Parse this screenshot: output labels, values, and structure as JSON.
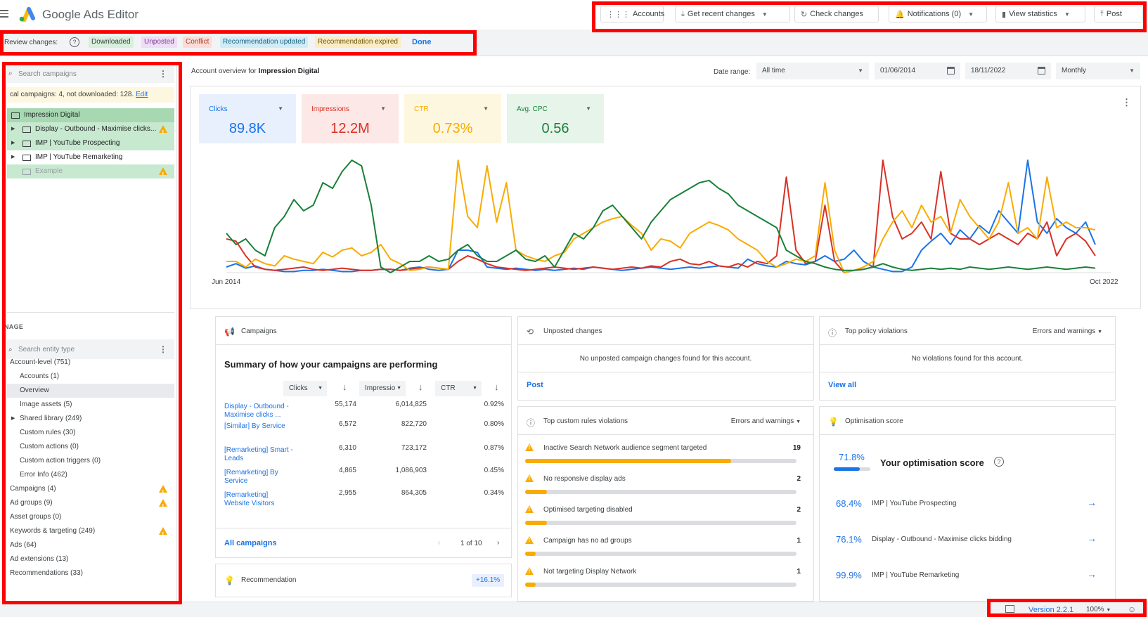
{
  "app": {
    "title": "Google Ads Editor"
  },
  "toolbar": {
    "accounts": "Accounts",
    "get_recent_changes": "Get recent changes",
    "check_changes": "Check changes",
    "notifications": "Notifications (0)",
    "view_statistics": "View statistics",
    "post": "Post"
  },
  "review": {
    "label": "Review changes:",
    "chips": [
      {
        "label": "Downloaded",
        "bg": "#d7efdb",
        "fg": "#3c4043"
      },
      {
        "label": "Unposted",
        "bg": "#efdcf5",
        "fg": "#7b3f9a"
      },
      {
        "label": "Conflict",
        "bg": "#fcdcd7",
        "fg": "#a5442f"
      },
      {
        "label": "Recommendation updated",
        "bg": "#d2ecf7",
        "fg": "#15607f"
      },
      {
        "label": "Recommendation expired",
        "bg": "#fbecc4",
        "fg": "#6b5200"
      }
    ],
    "done": "Done"
  },
  "left_panel": {
    "search_placeholder": "Search campaigns",
    "info_text": "cal campaigns: 4, not downloaded: 128.",
    "info_link": "Edit",
    "tree": [
      {
        "label": "Impression Digital",
        "state": "downloaded"
      },
      {
        "label": "Display - Outbound - Maximise clicks...",
        "state": "downloaded"
      },
      {
        "label": "IMP | YouTube Prospecting",
        "state": "downloaded"
      },
      {
        "label": "IMP | YouTube Remarketing",
        "state": "none"
      },
      {
        "label": "Example",
        "state": "downloaded-muted"
      }
    ],
    "manage_label": "NAGE",
    "entity_search_placeholder": "Search entity type",
    "entities": [
      {
        "label": "Account-level (751)"
      },
      {
        "label": "Accounts (1)"
      },
      {
        "label": "Overview"
      },
      {
        "label": "Image assets (5)"
      },
      {
        "label": "Shared library (249)"
      },
      {
        "label": "Custom rules (30)"
      },
      {
        "label": "Custom actions (0)"
      },
      {
        "label": "Custom action triggers (0)"
      },
      {
        "label": "Error Info (462)"
      },
      {
        "label": "Campaigns (4)"
      },
      {
        "label": "Ad groups (9)"
      },
      {
        "label": "Asset groups (0)"
      },
      {
        "label": "Keywords & targeting (249)"
      },
      {
        "label": "Ads (64)"
      },
      {
        "label": "Ad extensions (13)"
      },
      {
        "label": "Recommendations (33)"
      }
    ]
  },
  "header": {
    "account_prefix": "Account overview for",
    "account_name": "Impression Digital",
    "date_range_label": "Date range:",
    "date_range": "All time",
    "start_date": "01/06/2014",
    "end_date": "18/11/2022",
    "granularity": "Monthly"
  },
  "metrics": [
    {
      "label": "Clicks",
      "value": "89.8K",
      "bg": "#e8f0fe",
      "color": "#1a73e8"
    },
    {
      "label": "Impressions",
      "value": "12.2M",
      "bg": "#fce8e6",
      "color": "#d93025"
    },
    {
      "label": "CTR",
      "value": "0.73%",
      "bg": "#fef7e0",
      "color": "#f9ab00"
    },
    {
      "label": "Avg. CPC",
      "value": "0.56",
      "bg": "#e6f4ea",
      "color": "#188038"
    }
  ],
  "chart_data": {
    "type": "line",
    "x_start_label": "Jun 2014",
    "x_end_label": "Oct 2022",
    "series": [
      {
        "name": "Clicks",
        "color": "#1a73e8",
        "values": [
          0.05,
          0.08,
          0.04,
          0.06,
          0.03,
          0.02,
          0.01,
          0.01,
          0.02,
          0.02,
          0.03,
          0.02,
          0.01,
          0.01,
          0.02,
          0.02,
          0.03,
          0.03,
          0.02,
          0.04,
          0.05,
          0.03,
          0.02,
          0.03,
          0.2,
          0.2,
          0.18,
          0.05,
          0.04,
          0.03,
          0.04,
          0.03,
          0.02,
          0.03,
          0.02,
          0.03,
          0.04,
          0.03,
          0.05,
          0.04,
          0.03,
          0.02,
          0.03,
          0.04,
          0.05,
          0.04,
          0.03,
          0.04,
          0.05,
          0.04,
          0.05,
          0.06,
          0.05,
          0.04,
          0.12,
          0.08,
          0.06,
          0.05,
          0.1,
          0.08,
          0.07,
          0.1,
          0.15,
          0.1,
          0.12,
          0.2,
          0.1,
          0.05,
          0.03,
          0.01,
          0.01,
          0.05,
          0.2,
          0.28,
          0.35,
          0.25,
          0.38,
          0.3,
          0.42,
          0.35,
          0.55,
          0.45,
          0.35,
          1.0,
          0.45,
          0.35,
          0.48,
          0.4,
          0.35,
          0.45,
          0.25
        ]
      },
      {
        "name": "Impressions",
        "color": "#d93025",
        "values": [
          0.3,
          0.28,
          0.15,
          0.05,
          0.03,
          0.02,
          0.03,
          0.04,
          0.05,
          0.03,
          0.02,
          0.03,
          0.04,
          0.03,
          0.02,
          0.02,
          0.03,
          0.03,
          0.02,
          0.03,
          0.04,
          0.05,
          0.04,
          0.03,
          0.1,
          0.15,
          0.12,
          0.08,
          0.05,
          0.04,
          0.03,
          0.02,
          0.03,
          0.04,
          0.05,
          0.04,
          0.03,
          0.04,
          0.05,
          0.04,
          0.03,
          0.04,
          0.05,
          0.04,
          0.06,
          0.05,
          0.1,
          0.12,
          0.08,
          0.07,
          0.1,
          0.06,
          0.05,
          0.08,
          0.05,
          0.1,
          0.08,
          0.15,
          0.85,
          0.2,
          0.08,
          0.1,
          0.6,
          0.1,
          0.0,
          0.02,
          0.03,
          0.05,
          1.0,
          0.5,
          0.3,
          0.35,
          0.45,
          0.3,
          0.9,
          0.35,
          0.3,
          0.3,
          0.25,
          0.3,
          0.35,
          0.3,
          0.25,
          0.35,
          0.3,
          0.45,
          0.15,
          0.3,
          0.35,
          0.28,
          0.15
        ]
      },
      {
        "name": "CTR",
        "color": "#f9ab00",
        "values": [
          0.1,
          0.1,
          0.05,
          0.12,
          0.08,
          0.06,
          0.15,
          0.12,
          0.1,
          0.08,
          0.18,
          0.14,
          0.2,
          0.22,
          0.15,
          0.18,
          0.25,
          0.12,
          0.08,
          0.02,
          0.03,
          0.05,
          0.04,
          0.03,
          1.0,
          0.5,
          0.4,
          0.95,
          0.45,
          0.8,
          0.2,
          0.15,
          0.12,
          0.1,
          0.15,
          0.18,
          0.3,
          0.35,
          0.4,
          0.45,
          0.48,
          0.5,
          0.42,
          0.35,
          0.2,
          0.3,
          0.28,
          0.22,
          0.35,
          0.4,
          0.45,
          0.42,
          0.38,
          0.3,
          0.25,
          0.2,
          0.1,
          0.05,
          0.08,
          0.12,
          0.1,
          0.15,
          0.8,
          0.2,
          0.0,
          0.02,
          0.05,
          0.1,
          0.3,
          0.45,
          0.55,
          0.4,
          0.6,
          0.45,
          0.5,
          0.35,
          0.65,
          0.5,
          0.4,
          0.3,
          0.45,
          0.8,
          0.35,
          0.4,
          0.3,
          0.85,
          0.4,
          0.45,
          0.4,
          0.4,
          0.38
        ]
      },
      {
        "name": "Avg. CPC",
        "color": "#188038",
        "values": [
          0.35,
          0.25,
          0.3,
          0.2,
          0.15,
          0.4,
          0.5,
          0.65,
          0.55,
          0.6,
          0.8,
          0.75,
          0.9,
          1.0,
          0.95,
          0.6,
          0.05,
          0.0,
          0.05,
          0.1,
          0.1,
          0.15,
          0.1,
          0.12,
          0.2,
          0.25,
          0.15,
          0.1,
          0.1,
          0.15,
          0.2,
          0.12,
          0.1,
          0.15,
          0.05,
          0.2,
          0.35,
          0.3,
          0.4,
          0.55,
          0.6,
          0.5,
          0.4,
          0.3,
          0.45,
          0.55,
          0.65,
          0.7,
          0.75,
          0.8,
          0.82,
          0.75,
          0.7,
          0.6,
          0.55,
          0.5,
          0.45,
          0.4,
          0.2,
          0.15,
          0.1,
          0.08,
          0.05,
          0.03,
          0.02,
          0.02,
          0.03,
          0.05,
          0.08,
          0.05,
          0.03,
          0.02,
          0.03,
          0.04,
          0.03,
          0.04,
          0.03,
          0.05,
          0.04,
          0.03,
          0.04,
          0.05,
          0.04,
          0.03,
          0.04,
          0.05,
          0.04,
          0.03,
          0.04,
          0.05,
          0.04
        ]
      }
    ]
  },
  "campaigns_card": {
    "title": "Campaigns",
    "summary": "Summary of how your campaigns are performing",
    "col1": "Clicks",
    "col2": "Impressio",
    "col3": "CTR",
    "rows": [
      {
        "name": "Display - Outbound - Maximise clicks ...",
        "clicks": "55,174",
        "impr": "6,014,825",
        "ctr": "0.92%"
      },
      {
        "name": "[Similar] By Service",
        "clicks": "6,572",
        "impr": "822,720",
        "ctr": "0.80%"
      },
      {
        "name": "[Remarketing] Smart - Leads",
        "clicks": "6,310",
        "impr": "723,172",
        "ctr": "0.87%"
      },
      {
        "name": "[Remarketing] By Service",
        "clicks": "4,865",
        "impr": "1,086,903",
        "ctr": "0.45%"
      },
      {
        "name": "[Remarketing] Website Visitors",
        "clicks": "2,955",
        "impr": "864,305",
        "ctr": "0.34%"
      }
    ],
    "all_link": "All campaigns",
    "pager": "1 of 10"
  },
  "recommendation_card": {
    "title": "Recommendation",
    "value": "+16.1%"
  },
  "unposted_card": {
    "title": "Unposted changes",
    "message": "No unposted campaign changes found for this account.",
    "link": "Post"
  },
  "policy_card": {
    "title": "Top policy violations",
    "filter": "Errors and warnings",
    "message": "No violations found for this account.",
    "link": "View all"
  },
  "rules_card": {
    "title": "Top custom rules violations",
    "filter": "Errors and warnings",
    "rows": [
      {
        "label": "Inactive Search Network audience segment targeted",
        "count": "19",
        "fill": 0.76
      },
      {
        "label": "No responsive display ads",
        "count": "2",
        "fill": 0.08
      },
      {
        "label": "Optimised targeting disabled",
        "count": "2",
        "fill": 0.08
      },
      {
        "label": "Campaign has no ad groups",
        "count": "1",
        "fill": 0.04
      },
      {
        "label": "Not targeting Display Network",
        "count": "1",
        "fill": 0.04
      }
    ]
  },
  "optimisation_card": {
    "title": "Optimisation score",
    "score": "71.8%",
    "score_fraction": 0.718,
    "score_title": "Your optimisation score",
    "rows": [
      {
        "pct": "68.4%",
        "name": "IMP | YouTube Prospecting"
      },
      {
        "pct": "76.1%",
        "name": "Display - Outbound - Maximise clicks bidding"
      },
      {
        "pct": "99.9%",
        "name": "IMP | YouTube Remarketing"
      }
    ]
  },
  "status": {
    "version": "Version 2.2.1",
    "zoom": "100%"
  }
}
